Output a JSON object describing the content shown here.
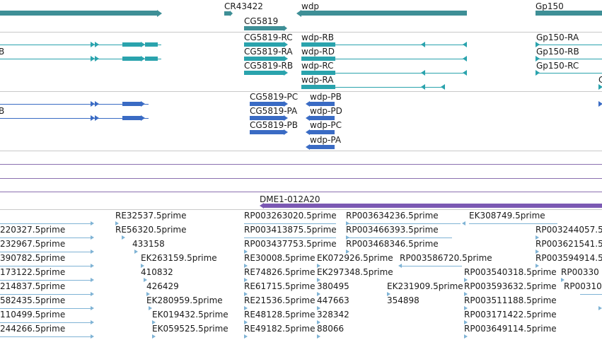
{
  "genes": {
    "cr43422": "CR43422",
    "cg5819": "CG5819",
    "wdp": "wdp",
    "gp150": "Gp150"
  },
  "transcripts": {
    "left_partial": "B",
    "cg5819_rc": "CG5819-RC",
    "cg5819_ra": "CG5819-RA",
    "cg5819_rb": "CG5819-RB",
    "wdp_rb": "wdp-RB",
    "wdp_rd": "wdp-RD",
    "wdp_rc": "wdp-RC",
    "wdp_ra": "wdp-RA",
    "gp150_ra": "Gp150-RA",
    "gp150_rb": "Gp150-RB",
    "gp150_rc": "Gp150-RC",
    "right_partial": "C"
  },
  "proteins": {
    "left_partial": "B",
    "cg5819_pc": "CG5819-PC",
    "cg5819_pa": "CG5819-PA",
    "cg5819_pb": "CG5819-PB",
    "wdp_pb": "wdp-PB",
    "wdp_pd": "wdp-PD",
    "wdp_pc": "wdp-PC",
    "wdp_pa": "wdp-PA"
  },
  "clone": {
    "label": "DME1-012A20"
  },
  "ests": {
    "col0": [
      "220327.5prime",
      "232967.5prime",
      "390782.5prime",
      "173122.5prime",
      "214837.5prime",
      "582435.5prime",
      "110499.5prime",
      "244266.5prime"
    ],
    "col1": [
      "RE32537.5prime",
      "RE56320.5prime",
      "433158",
      "EK263159.5prime",
      "410832",
      "426429",
      "EK280959.5prime",
      "EK019432.5prime",
      "EK059525.5prime"
    ],
    "col2": [
      "RP003263020.5prime",
      "RP003413875.5prime",
      "RP003437753.5prime",
      "RE30008.5prime",
      "RE74826.5prime",
      "RE61715.5prime",
      "RE21536.5prime",
      "RE48128.5prime",
      "RE49182.5prime"
    ],
    "col3": [
      "RP003634236.5prime",
      "RP003466393.5prime",
      "RP003468346.5prime",
      "EK072926.5prime",
      "EK297348.5prime",
      "380495",
      "447663",
      "328342",
      "88066"
    ],
    "misc": [
      "RP003586720.5prime",
      "EK231909.5prime",
      "354898"
    ],
    "col4": [
      "EK308749.5prime",
      "RP003540318.5prime",
      "RP003593632.5prime",
      "RP003511188.5prime",
      "RP003171422.5prime",
      "RP003649114.5prime"
    ],
    "col5": [
      "RP003244057.5",
      "RP003621541.5",
      "RP003594914.5",
      "RP00330",
      "RP00310"
    ]
  },
  "colors": {
    "gene": "#2aa3ad",
    "protein": "#3a6bc4",
    "est": "#7fb3d5",
    "clone": "#7b59b3"
  }
}
